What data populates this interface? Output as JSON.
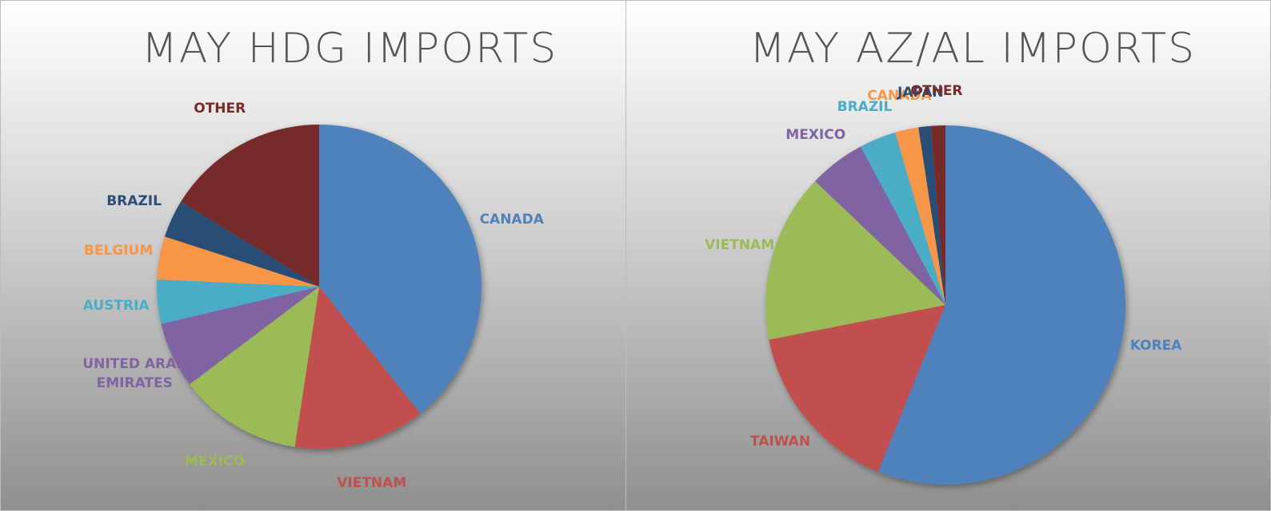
{
  "chart_data": [
    {
      "type": "pie",
      "title": "MAY HDG IMPORTS",
      "categories": [
        "CANADA",
        "VIETNAM",
        "MEXICO",
        "UNITED ARAB EMIRATES",
        "AUSTRIA",
        "BELGIUM",
        "BRAZIL",
        "OTHER"
      ],
      "values": [
        39.3,
        13.1,
        12.3,
        6.6,
        4.4,
        4.3,
        3.8,
        16.2
      ],
      "colors": [
        "#4f81bd",
        "#c0504d",
        "#9bbb59",
        "#8064a2",
        "#4bacc6",
        "#f79646",
        "#2c4d75",
        "#772c2a"
      ]
    },
    {
      "type": "pie",
      "title": "MAY AZ/AL IMPORTS",
      "categories": [
        "KOREA",
        "TAIWAN",
        "VIETNAM",
        "MEXICO",
        "BRAZIL",
        "CANADA",
        "JAPAN",
        "OTHER"
      ],
      "values": [
        56.1,
        15.8,
        15.2,
        5.1,
        3.3,
        2.1,
        1.1,
        1.3
      ],
      "colors": [
        "#4f81bd",
        "#c0504d",
        "#9bbb59",
        "#8064a2",
        "#4bacc6",
        "#f79646",
        "#2c4d75",
        "#772c2a"
      ]
    }
  ]
}
